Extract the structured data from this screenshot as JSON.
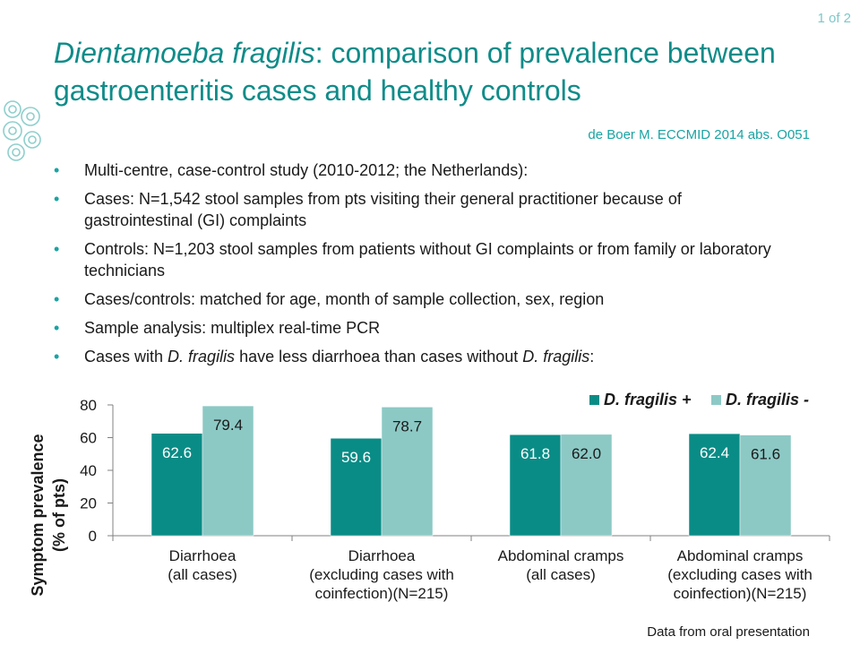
{
  "page_number": "1 of 2",
  "title": {
    "italic": "Dientamoeba fragilis",
    "rest": ": comparison of prevalence between gastroenteritis cases and healthy controls"
  },
  "citation": "de Boer M. ECCMID 2014 abs. O051",
  "bullets": [
    {
      "text": "Multi-centre, case-control study (2010-2012; the Netherlands):"
    },
    {
      "text": "Cases: N=1,542 stool samples from pts visiting their general practitioner because of gastrointestinal (GI) complaints"
    },
    {
      "text": "Controls: N=1,203 stool samples from patients without GI complaints or from family or laboratory technicians"
    },
    {
      "text": "Cases/controls: matched for age, month of sample collection, sex, region"
    },
    {
      "text": "Sample analysis: multiplex real-time PCR"
    },
    {
      "parts": [
        "Cases with ",
        "D. fragilis",
        " have less diarrhoea than cases without ",
        "D. fragilis",
        ":"
      ]
    }
  ],
  "footnote": "Data from oral presentation",
  "colors": {
    "dark": "#0a8c86",
    "light": "#8cc9c5",
    "accent": "#0f8c89"
  },
  "chart_data": {
    "type": "bar",
    "categories": [
      [
        "Diarrhoea",
        "(all cases)"
      ],
      [
        "Diarrhoea",
        "(excluding cases with",
        "coinfection)(N=215)"
      ],
      [
        "Abdominal cramps",
        "(all cases)"
      ],
      [
        "Abdominal cramps",
        "(excluding cases with",
        "coinfection)(N=215)"
      ]
    ],
    "series": [
      {
        "name": "D. fragilis +",
        "values": [
          62.6,
          59.6,
          61.8,
          62.4
        ]
      },
      {
        "name": "D. fragilis -",
        "values": [
          79.4,
          78.7,
          62.0,
          61.6
        ]
      }
    ],
    "data_labels": [
      [
        "62.6",
        "59.6",
        "61.8",
        "62.4"
      ],
      [
        "79.4",
        "78.7",
        "62.0",
        "61.6"
      ]
    ],
    "ylabel": [
      "Symptom prevalence",
      "(% of pts)"
    ],
    "ylim": [
      0,
      80
    ],
    "yticks": [
      0,
      20,
      40,
      60,
      80
    ],
    "legend_position": "top-right",
    "grid": false
  }
}
